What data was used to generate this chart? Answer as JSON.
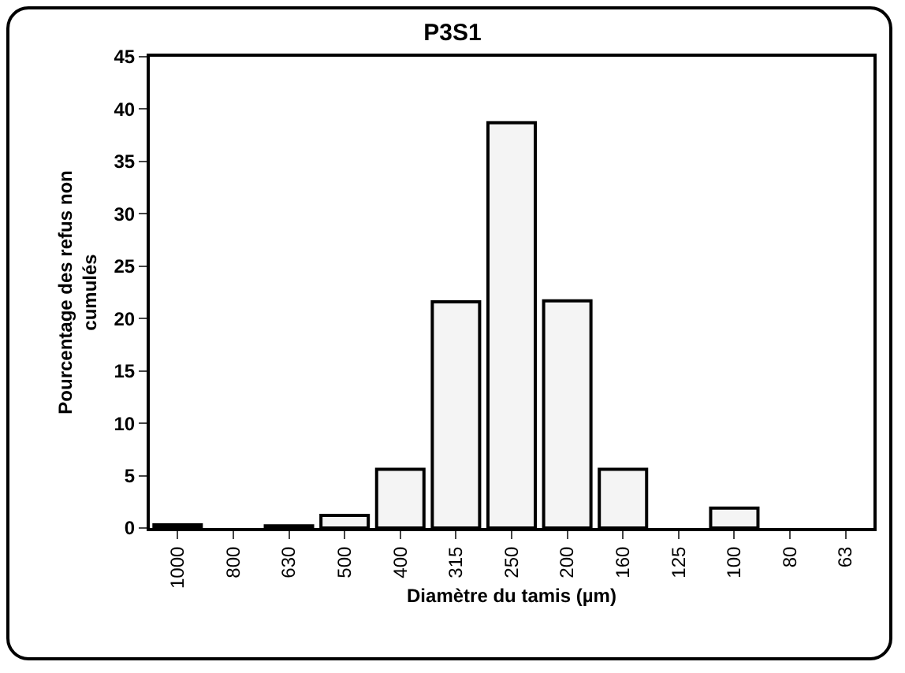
{
  "chart_data": {
    "type": "bar",
    "title": "P3S1",
    "xlabel": "Diamètre du tamis (µm)",
    "ylabel": "Pourcentage des refus non cumulés",
    "categories": [
      "1000",
      "800",
      "630",
      "500",
      "400",
      "315",
      "250",
      "200",
      "160",
      "125",
      "100",
      "80",
      "63"
    ],
    "values": [
      0.3,
      0,
      0.2,
      1.2,
      5.6,
      21.6,
      38.7,
      21.7,
      5.6,
      0,
      1.9,
      0,
      0
    ],
    "color": "#f4f4f4",
    "ylim": [
      0,
      45
    ],
    "yticks": [
      0,
      5,
      10,
      15,
      20,
      25,
      30,
      35,
      40,
      45
    ]
  }
}
